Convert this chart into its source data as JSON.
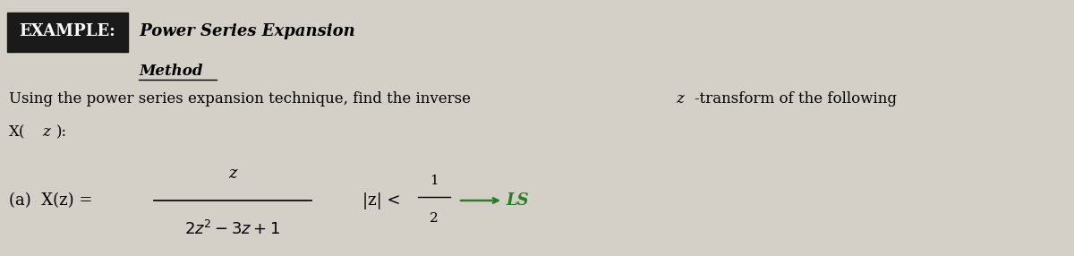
{
  "bg_color": "#d4d0c8",
  "example_box_color": "#1a1a1a",
  "example_text": "EXAMPLE:",
  "title_text": " Power Series Expansion",
  "method_text": "Method",
  "body_line1": "Using the power series expansion technique, find the inverse ",
  "body_line1b": "z",
  "body_line1c": "-transform of the following",
  "body_line2a": "X(",
  "body_line2b": "z",
  "body_line2c": "):",
  "part_label": "(a)  X(z) =",
  "numerator": "z",
  "denominator": "2z² − 3z + 1",
  "condition": "|z| <",
  "condition_frac_num": "1",
  "condition_frac_den": "2",
  "arrow_color": "#2d7a2d",
  "ls_text": "LS"
}
